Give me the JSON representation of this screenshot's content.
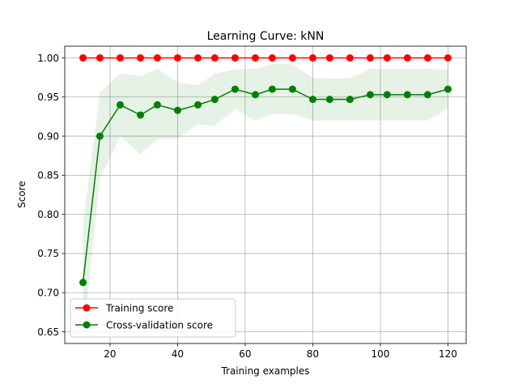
{
  "chart_data": {
    "type": "line",
    "title": "Learning Curve: kNN",
    "xlabel": "Training examples",
    "ylabel": "Score",
    "xlim": [
      6.6,
      125.4
    ],
    "ylim": [
      0.635,
      1.015
    ],
    "xticks": [
      20,
      40,
      60,
      80,
      100,
      120
    ],
    "yticks": [
      0.65,
      0.7,
      0.75,
      0.8,
      0.85,
      0.9,
      0.95,
      1.0
    ],
    "xtick_labels": [
      "20",
      "40",
      "60",
      "80",
      "100",
      "120"
    ],
    "ytick_labels": [
      "0.65",
      "0.70",
      "0.75",
      "0.80",
      "0.85",
      "0.90",
      "0.95",
      "1.00"
    ],
    "grid": true,
    "legend_position": "lower-left",
    "x": [
      12,
      17,
      23,
      29,
      34,
      40,
      46,
      51,
      57,
      63,
      68,
      74,
      80,
      85,
      91,
      97,
      102,
      108,
      114,
      120
    ],
    "series": [
      {
        "name": "Training score",
        "color": "#ff0000",
        "values": [
          1.0,
          1.0,
          1.0,
          1.0,
          1.0,
          1.0,
          1.0,
          1.0,
          1.0,
          1.0,
          1.0,
          1.0,
          1.0,
          1.0,
          1.0,
          1.0,
          1.0,
          1.0,
          1.0,
          1.0
        ],
        "band_lower": [
          1.0,
          1.0,
          1.0,
          1.0,
          1.0,
          1.0,
          1.0,
          1.0,
          1.0,
          1.0,
          1.0,
          1.0,
          1.0,
          1.0,
          1.0,
          1.0,
          1.0,
          1.0,
          1.0,
          1.0
        ],
        "band_upper": [
          1.0,
          1.0,
          1.0,
          1.0,
          1.0,
          1.0,
          1.0,
          1.0,
          1.0,
          1.0,
          1.0,
          1.0,
          1.0,
          1.0,
          1.0,
          1.0,
          1.0,
          1.0,
          1.0,
          1.0
        ]
      },
      {
        "name": "Cross-validation score",
        "color": "#008000",
        "values": [
          0.713,
          0.9,
          0.94,
          0.927,
          0.94,
          0.933,
          0.94,
          0.947,
          0.96,
          0.953,
          0.96,
          0.96,
          0.947,
          0.947,
          0.947,
          0.953,
          0.953,
          0.953,
          0.953,
          0.96
        ],
        "band_lower": [
          0.64,
          0.845,
          0.9,
          0.877,
          0.896,
          0.897,
          0.915,
          0.913,
          0.935,
          0.92,
          0.928,
          0.928,
          0.92,
          0.92,
          0.92,
          0.92,
          0.92,
          0.92,
          0.92,
          0.935
        ],
        "band_upper": [
          0.787,
          0.955,
          0.98,
          0.977,
          0.986,
          0.969,
          0.965,
          0.98,
          0.985,
          0.986,
          0.992,
          0.992,
          0.974,
          0.974,
          0.974,
          0.986,
          0.986,
          0.986,
          0.986,
          0.985
        ]
      }
    ]
  }
}
